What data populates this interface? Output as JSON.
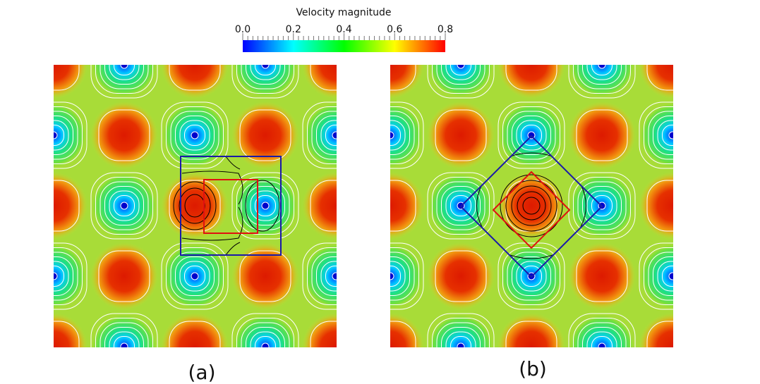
{
  "colorbar": {
    "title": "Velocity magnitude",
    "ticks": [
      "0.0",
      "0.2",
      "0.4",
      "0.6",
      "0.8"
    ],
    "range": [
      0.0,
      0.8
    ],
    "colors": [
      "#0000ff",
      "#00ffff",
      "#00ff00",
      "#ffff00",
      "#ff0000"
    ]
  },
  "panels": [
    {
      "label": "(a)",
      "cells_per_side": 2,
      "overlay": "square"
    },
    {
      "label": "(b)",
      "cells_per_side": 2,
      "overlay": "diamond"
    }
  ],
  "overlay_colors": {
    "outer": "#1a1aa8",
    "inner": "#e01010",
    "streamline_outer": "#ffffff",
    "streamline_inner": "#000000"
  }
}
